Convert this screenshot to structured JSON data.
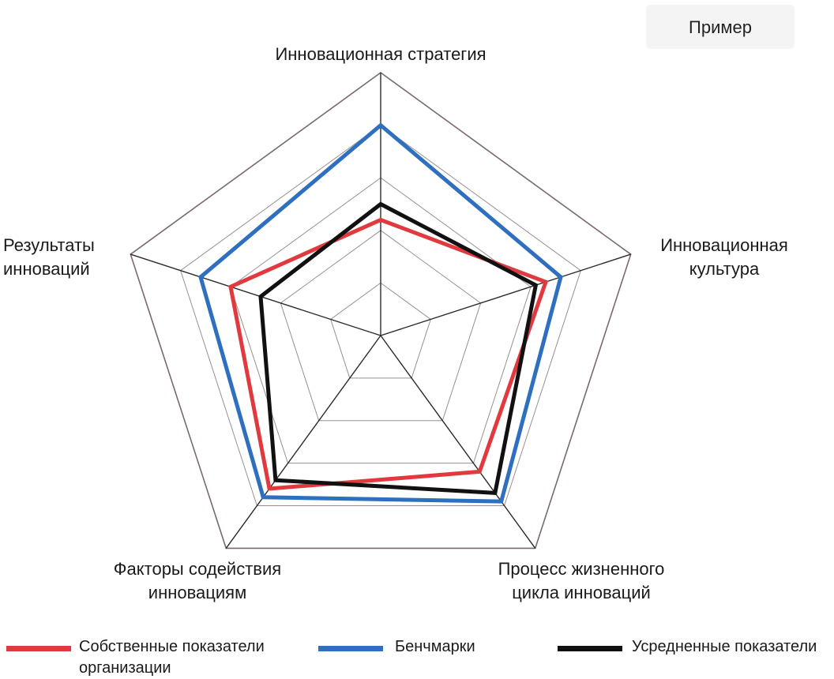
{
  "badge": {
    "label": "Пример"
  },
  "chart_data": {
    "type": "radar",
    "title": "",
    "axes": [
      "Инновационная стратегия",
      "Инновационная культура",
      "Процесс жизненного цикла инноваций",
      "Факторы содействия инновациям",
      "Результаты инноваций"
    ],
    "axis_label_lines": [
      [
        "Инновационная стратегия"
      ],
      [
        "Инновационная",
        "культура"
      ],
      [
        "Процесс жизненного",
        "цикла инноваций"
      ],
      [
        "Факторы содействия",
        "инновациям"
      ],
      [
        "Результаты",
        "инноваций"
      ]
    ],
    "range": [
      0,
      5
    ],
    "grid_levels": 5,
    "series": [
      {
        "name": "Собственные показатели организации",
        "legend_lines": [
          "Собственные показатели",
          "организации"
        ],
        "color": "#e03a3e",
        "values": [
          2.2,
          3.3,
          3.2,
          3.6,
          3.0
        ]
      },
      {
        "name": "Бенчмарки",
        "legend_lines": [
          "Бенчмарки"
        ],
        "color": "#2e6fbf",
        "values": [
          4.0,
          3.6,
          3.9,
          3.8,
          3.6
        ]
      },
      {
        "name": "Усредненные показатели",
        "legend_lines": [
          "Усредненные показатели"
        ],
        "color": "#111111",
        "values": [
          2.5,
          3.1,
          3.7,
          3.4,
          2.4
        ]
      }
    ],
    "grid": true,
    "legend_position": "bottom"
  }
}
